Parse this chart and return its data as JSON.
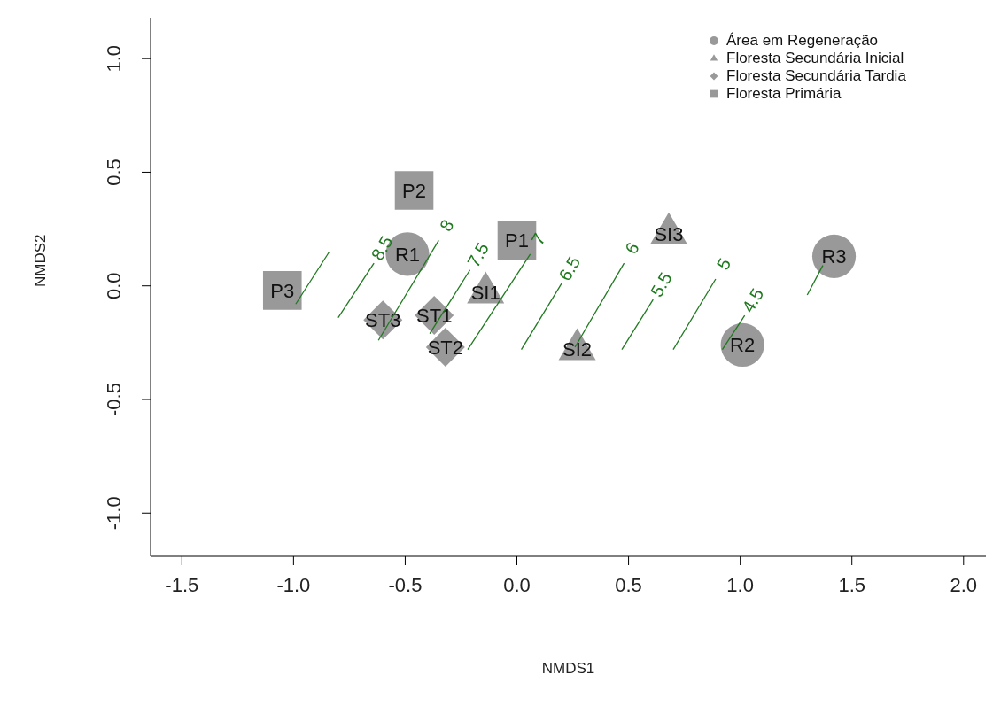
{
  "chart_data": {
    "type": "scatter",
    "xlabel": "NMDS1",
    "ylabel": "NMDS2",
    "xlim": [
      -1.64,
      2.1
    ],
    "ylim": [
      -1.19,
      1.18
    ],
    "xticks": [
      -1.5,
      {
        "value": -1,
        "label": "-1.0"
      },
      -0.5,
      {
        "value": 0,
        "label": "0.0"
      },
      0.5,
      {
        "value": 1,
        "label": "1.0"
      },
      1.5,
      {
        "value": 2,
        "label": "2.0"
      }
    ],
    "yticks": [
      {
        "value": -1,
        "label": "-1.0"
      },
      -0.5,
      {
        "value": 0,
        "label": "0.0"
      },
      0.5,
      {
        "value": 1,
        "label": "1.0"
      }
    ],
    "legend": "top right",
    "grid": false,
    "series": [
      {
        "name": "Área em Regeneração",
        "marker": "circle",
        "color": "#999999",
        "x": [
          -0.49,
          1.01,
          1.42
        ],
        "values": [
          0.14,
          -0.26,
          0.13
        ],
        "value_labels": [
          "R1",
          "R2",
          "R3"
        ]
      },
      {
        "name": "Floresta Secundária Inicial",
        "marker": "triangle",
        "color": "#999999",
        "x": [
          -0.14,
          0.27,
          0.68
        ],
        "values": [
          -0.03,
          -0.28,
          0.23
        ],
        "value_labels": [
          "SI1",
          "SI2",
          "SI3"
        ]
      },
      {
        "name": "Floresta Secundária Tardia",
        "marker": "diamond",
        "color": "#999999",
        "x": [
          -0.37,
          -0.32,
          -0.6
        ],
        "values": [
          -0.13,
          -0.27,
          -0.15
        ],
        "value_labels": [
          "ST1",
          "ST2",
          "ST3"
        ]
      },
      {
        "name": "Floresta Primária",
        "marker": "square",
        "color": "#999999",
        "x": [
          0.0,
          -0.46,
          -1.05
        ],
        "values": [
          0.2,
          0.42,
          -0.02
        ],
        "value_labels": [
          "P1",
          "P2",
          "P3"
        ]
      },
      {
        "type": "line",
        "color": "#1f7a1f",
        "x": [
          -0.99,
          -0.84
        ],
        "values": [
          -0.08,
          0.15
        ]
      },
      {
        "name": "8.5",
        "type": "line",
        "color": "#1f7a1f",
        "x": [
          -0.8,
          -0.64
        ],
        "values": [
          -0.14,
          0.1
        ]
      },
      {
        "name": "8",
        "type": "line",
        "color": "#1f7a1f",
        "x": [
          -0.62,
          -0.35
        ],
        "values": [
          -0.24,
          0.2
        ]
      },
      {
        "name": "7.5",
        "type": "line",
        "color": "#1f7a1f",
        "x": [
          -0.39,
          -0.21
        ],
        "values": [
          -0.21,
          0.07
        ]
      },
      {
        "name": "7",
        "type": "line",
        "color": "#1f7a1f",
        "x": [
          -0.22,
          0.06
        ],
        "values": [
          -0.28,
          0.14
        ]
      },
      {
        "name": "6.5",
        "type": "line",
        "color": "#1f7a1f",
        "x": [
          0.02,
          0.2
        ],
        "values": [
          -0.28,
          0.01
        ]
      },
      {
        "name": "6",
        "type": "line",
        "color": "#1f7a1f",
        "x": [
          0.26,
          0.48
        ],
        "values": [
          -0.27,
          0.1
        ]
      },
      {
        "name": "5.5",
        "type": "line",
        "color": "#1f7a1f",
        "x": [
          0.47,
          0.61
        ],
        "values": [
          -0.28,
          -0.06
        ]
      },
      {
        "name": "5",
        "type": "line",
        "color": "#1f7a1f",
        "x": [
          0.7,
          0.89
        ],
        "values": [
          -0.28,
          0.03
        ]
      },
      {
        "name": "4.5",
        "type": "line",
        "color": "#1f7a1f",
        "x": [
          0.92,
          1.02
        ],
        "values": [
          -0.28,
          -0.13
        ]
      },
      {
        "type": "line",
        "color": "#1f7a1f",
        "x": [
          1.3,
          1.37
        ],
        "values": [
          -0.04,
          0.09
        ]
      }
    ]
  }
}
